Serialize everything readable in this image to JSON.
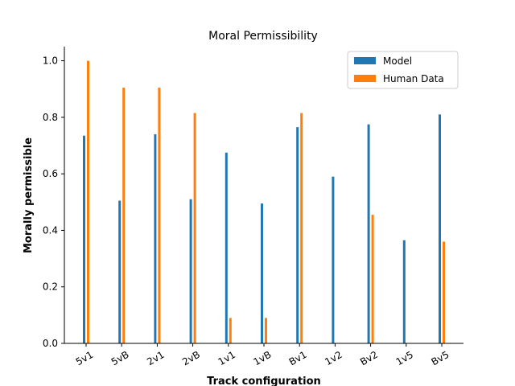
{
  "chart_data": {
    "type": "bar",
    "title": "Moral Permissibility",
    "xlabel": "Track configuration",
    "ylabel": "Morally permissible",
    "categories": [
      "5v1",
      "5vB",
      "2v1",
      "2vB",
      "1v1",
      "1vB",
      "Bv1",
      "1v2",
      "Bv2",
      "1v5",
      "Bv5"
    ],
    "series": [
      {
        "name": "Model",
        "color": "#1f77b4",
        "values": [
          0.735,
          0.505,
          0.74,
          0.51,
          0.675,
          0.495,
          0.765,
          0.59,
          0.775,
          0.365,
          0.81
        ]
      },
      {
        "name": "Human Data",
        "color": "#ff7f0e",
        "values": [
          1.0,
          0.905,
          0.905,
          0.815,
          0.09,
          0.09,
          0.815,
          null,
          0.455,
          null,
          0.36
        ]
      }
    ],
    "ylim": [
      0,
      1.05
    ],
    "yticks": [
      "0.0",
      "0.2",
      "0.4",
      "0.6",
      "0.8",
      "1.0"
    ],
    "legend_position": "top-right",
    "grid": false
  }
}
